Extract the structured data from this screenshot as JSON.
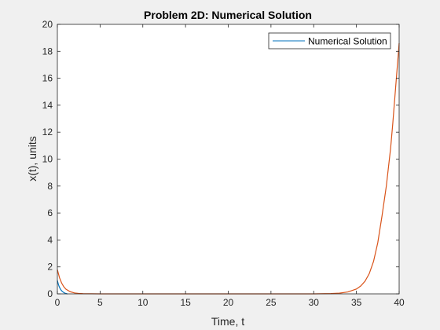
{
  "chart_data": {
    "type": "line",
    "title": "Problem 2D: Numerical Solution",
    "xlabel": "Time, t",
    "ylabel": "x(t), units",
    "xlim": [
      0,
      40
    ],
    "ylim": [
      0,
      20
    ],
    "xticks": [
      0,
      5,
      10,
      15,
      20,
      25,
      30,
      35,
      40
    ],
    "yticks": [
      0,
      2,
      4,
      6,
      8,
      10,
      12,
      14,
      16,
      18,
      20
    ],
    "grid": false,
    "legend": {
      "position": "top-right",
      "entries": [
        "Numerical Solution"
      ]
    },
    "series": [
      {
        "name": "Numerical Solution",
        "color": "#0072BD",
        "x": [
          0,
          0.1,
          0.2,
          0.3,
          0.4,
          0.5,
          0.6,
          0.7,
          0.8,
          0.9,
          1.0,
          1.1,
          1.2
        ],
        "y": [
          1.0,
          0.75,
          0.56,
          0.42,
          0.31,
          0.23,
          0.17,
          0.12,
          0.08,
          0.05,
          0.03,
          0.01,
          0.0
        ]
      },
      {
        "color": "#D95319",
        "x": [
          0,
          0.25,
          0.5,
          0.75,
          1.0,
          1.5,
          2.0,
          2.5,
          3.0,
          4.0,
          5.0,
          10.0,
          15.0,
          20.0,
          25.0,
          30.0,
          32.0,
          33.0,
          34.0,
          35.0,
          35.5,
          36.0,
          36.5,
          37.0,
          37.5,
          38.0,
          38.5,
          39.0,
          39.25,
          39.5,
          39.75,
          40.0
        ],
        "y": [
          1.8,
          1.2,
          0.8,
          0.53,
          0.35,
          0.16,
          0.07,
          0.03,
          0.015,
          0.005,
          0.002,
          0.0,
          0.0,
          0.0,
          0.0,
          0.0,
          0.02,
          0.05,
          0.14,
          0.36,
          0.58,
          0.93,
          1.5,
          2.4,
          3.8,
          5.8,
          8.0,
          10.8,
          12.6,
          14.6,
          16.6,
          18.6
        ]
      }
    ]
  }
}
